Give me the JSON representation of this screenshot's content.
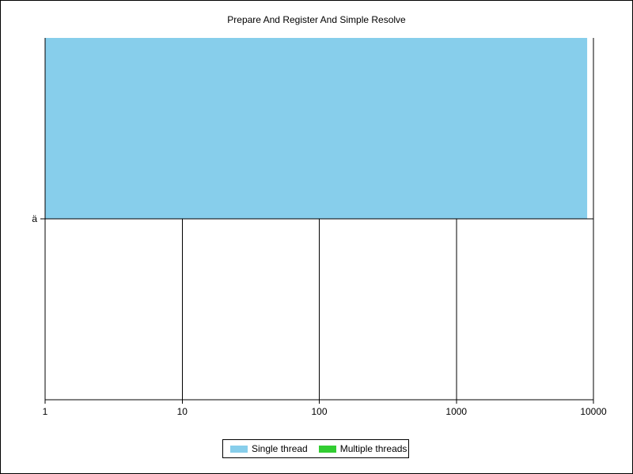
{
  "chart_data": {
    "type": "bar",
    "orientation": "horizontal",
    "title": "Prepare And Register And Simple Resolve",
    "xscale": "log",
    "xlim": [
      1,
      10000
    ],
    "xticks": [
      "1",
      "10",
      "100",
      "1000",
      "10000"
    ],
    "categories": [
      "ä"
    ],
    "series": [
      {
        "name": "Single thread",
        "color": "#87ceeb",
        "values": [
          9000
        ]
      },
      {
        "name": "Multiple threads",
        "color": "#32cd32",
        "values": [
          null
        ]
      }
    ],
    "grid": true,
    "legend_position": "bottom-center"
  }
}
